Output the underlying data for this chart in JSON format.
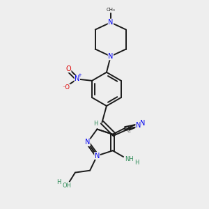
{
  "background_color": "#eeeeee",
  "bond_color": "#1a1a1a",
  "nitrogen_color": "#0000ee",
  "oxygen_color": "#dd0000",
  "teal_color": "#2e8b57",
  "figsize": [
    3.0,
    3.0
  ],
  "dpi": 100,
  "xlim": [
    0,
    10
  ],
  "ylim": [
    0,
    10
  ]
}
